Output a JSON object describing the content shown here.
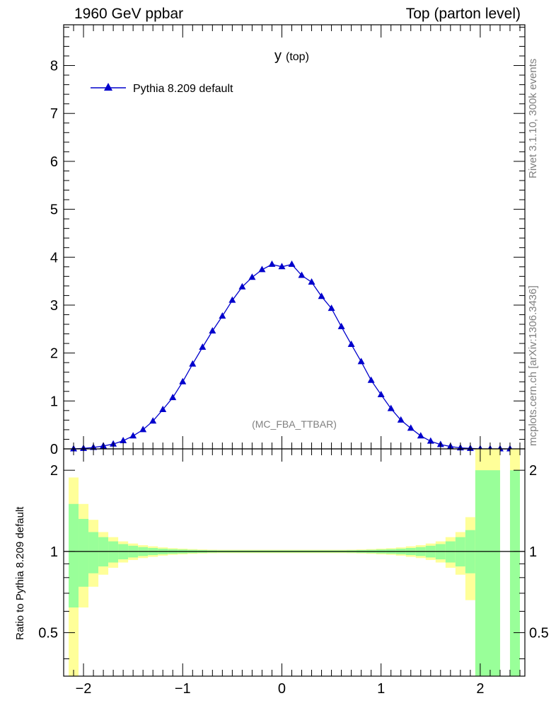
{
  "header": {
    "left": "1960 GeV ppbar",
    "right": "Top (parton level)"
  },
  "side_text": {
    "rivet": "Rivet 3.1.10,  300k events",
    "mcplots": "mcplots.cern.ch [arXiv:1306.3436]"
  },
  "colors": {
    "series": "#0000cc",
    "band_outer": "#ffff99",
    "band_inner": "#99ff99",
    "watermark": "#808080"
  },
  "chart_data": [
    {
      "type": "line",
      "title": "y",
      "title_sub": "(top)",
      "watermark": "(MC_FBA_TTBAR)",
      "xlabel": "",
      "ylabel": "",
      "xlim": [
        -2.2,
        2.45
      ],
      "ylim": [
        0,
        8.85
      ],
      "yticks": [
        "0",
        "1",
        "2",
        "3",
        "4",
        "5",
        "6",
        "7",
        "8"
      ],
      "series": [
        {
          "name": "Pythia 8.209 default",
          "marker": "triangle",
          "x": [
            -2.1,
            -2.0,
            -1.9,
            -1.8,
            -1.7,
            -1.6,
            -1.5,
            -1.4,
            -1.3,
            -1.2,
            -1.1,
            -1.0,
            -0.9,
            -0.8,
            -0.7,
            -0.6,
            -0.5,
            -0.4,
            -0.3,
            -0.2,
            -0.1,
            0.0,
            0.1,
            0.2,
            0.3,
            0.4,
            0.5,
            0.6,
            0.7,
            0.8,
            0.9,
            1.0,
            1.1,
            1.2,
            1.3,
            1.4,
            1.5,
            1.6,
            1.7,
            1.8,
            1.9,
            2.0,
            2.1,
            2.2,
            2.3
          ],
          "values": [
            0.0,
            0.01,
            0.03,
            0.06,
            0.1,
            0.17,
            0.27,
            0.4,
            0.58,
            0.82,
            1.07,
            1.4,
            1.77,
            2.12,
            2.46,
            2.77,
            3.1,
            3.38,
            3.58,
            3.74,
            3.85,
            3.8,
            3.85,
            3.62,
            3.48,
            3.18,
            2.93,
            2.55,
            2.18,
            1.82,
            1.43,
            1.13,
            0.84,
            0.6,
            0.43,
            0.27,
            0.16,
            0.09,
            0.05,
            0.02,
            0.01,
            0.0,
            0.0,
            0.0,
            0.0
          ]
        }
      ]
    },
    {
      "type": "area",
      "ylabel": "Ratio to Pythia 8.209 default",
      "xlim": [
        -2.2,
        2.45
      ],
      "ylim": [
        0.345,
        2.4
      ],
      "ylog": true,
      "xticks": [
        "−2",
        "−1",
        "0",
        "1",
        "2"
      ],
      "xtick_values": [
        -2,
        -1,
        0,
        1,
        2
      ],
      "yticks": [
        "0.5",
        "1",
        "2"
      ],
      "ytick_values": [
        0.5,
        1,
        2
      ],
      "reference_line": 1,
      "bins": [
        {
          "x0": -2.15,
          "x1": -2.05,
          "inner": [
            0.62,
            1.5
          ],
          "outer": [
            0.3,
            1.88
          ]
        },
        {
          "x0": -2.05,
          "x1": -1.95,
          "inner": [
            0.74,
            1.32
          ],
          "outer": [
            0.62,
            1.5
          ]
        },
        {
          "x0": -1.95,
          "x1": -1.85,
          "inner": [
            0.83,
            1.18
          ],
          "outer": [
            0.74,
            1.31
          ]
        },
        {
          "x0": -1.85,
          "x1": -1.75,
          "inner": [
            0.88,
            1.13
          ],
          "outer": [
            0.82,
            1.18
          ]
        },
        {
          "x0": -1.75,
          "x1": -1.65,
          "inner": [
            0.91,
            1.09
          ],
          "outer": [
            0.87,
            1.13
          ]
        },
        {
          "x0": -1.65,
          "x1": -1.55,
          "inner": [
            0.935,
            1.065
          ],
          "outer": [
            0.91,
            1.09
          ]
        },
        {
          "x0": -1.55,
          "x1": -1.45,
          "inner": [
            0.95,
            1.05
          ],
          "outer": [
            0.93,
            1.07
          ]
        },
        {
          "x0": -1.45,
          "x1": -1.35,
          "inner": [
            0.962,
            1.038
          ],
          "outer": [
            0.945,
            1.055
          ]
        },
        {
          "x0": -1.35,
          "x1": -1.25,
          "inner": [
            0.97,
            1.03
          ],
          "outer": [
            0.955,
            1.045
          ]
        },
        {
          "x0": -1.25,
          "x1": -1.15,
          "inner": [
            0.976,
            1.024
          ],
          "outer": [
            0.965,
            1.035
          ]
        },
        {
          "x0": -1.15,
          "x1": -1.05,
          "inner": [
            0.98,
            1.02
          ],
          "outer": [
            0.972,
            1.028
          ]
        },
        {
          "x0": -1.05,
          "x1": -0.95,
          "inner": [
            0.983,
            1.017
          ],
          "outer": [
            0.976,
            1.024
          ]
        },
        {
          "x0": -0.95,
          "x1": -0.85,
          "inner": [
            0.986,
            1.014
          ],
          "outer": [
            0.98,
            1.02
          ]
        },
        {
          "x0": -0.85,
          "x1": -0.75,
          "inner": [
            0.988,
            1.012
          ],
          "outer": [
            0.983,
            1.017
          ]
        },
        {
          "x0": -0.75,
          "x1": -0.65,
          "inner": [
            0.99,
            1.01
          ],
          "outer": [
            0.985,
            1.015
          ]
        },
        {
          "x0": -0.65,
          "x1": 0.65,
          "inner": [
            0.991,
            1.009
          ],
          "outer": [
            0.986,
            1.014
          ]
        },
        {
          "x0": 0.65,
          "x1": 0.75,
          "inner": [
            0.99,
            1.01
          ],
          "outer": [
            0.985,
            1.015
          ]
        },
        {
          "x0": 0.75,
          "x1": 0.85,
          "inner": [
            0.988,
            1.012
          ],
          "outer": [
            0.983,
            1.017
          ]
        },
        {
          "x0": 0.85,
          "x1": 0.95,
          "inner": [
            0.986,
            1.014
          ],
          "outer": [
            0.98,
            1.02
          ]
        },
        {
          "x0": 0.95,
          "x1": 1.05,
          "inner": [
            0.983,
            1.017
          ],
          "outer": [
            0.976,
            1.024
          ]
        },
        {
          "x0": 1.05,
          "x1": 1.15,
          "inner": [
            0.98,
            1.02
          ],
          "outer": [
            0.972,
            1.028
          ]
        },
        {
          "x0": 1.15,
          "x1": 1.25,
          "inner": [
            0.976,
            1.024
          ],
          "outer": [
            0.965,
            1.035
          ]
        },
        {
          "x0": 1.25,
          "x1": 1.35,
          "inner": [
            0.97,
            1.03
          ],
          "outer": [
            0.955,
            1.045
          ]
        },
        {
          "x0": 1.35,
          "x1": 1.45,
          "inner": [
            0.962,
            1.038
          ],
          "outer": [
            0.945,
            1.055
          ]
        },
        {
          "x0": 1.45,
          "x1": 1.55,
          "inner": [
            0.95,
            1.05
          ],
          "outer": [
            0.93,
            1.07
          ]
        },
        {
          "x0": 1.55,
          "x1": 1.65,
          "inner": [
            0.935,
            1.065
          ],
          "outer": [
            0.91,
            1.09
          ]
        },
        {
          "x0": 1.65,
          "x1": 1.75,
          "inner": [
            0.91,
            1.09
          ],
          "outer": [
            0.87,
            1.13
          ]
        },
        {
          "x0": 1.75,
          "x1": 1.85,
          "inner": [
            0.88,
            1.13
          ],
          "outer": [
            0.82,
            1.18
          ]
        },
        {
          "x0": 1.85,
          "x1": 1.95,
          "inner": [
            0.83,
            1.2
          ],
          "outer": [
            0.66,
            1.34
          ]
        },
        {
          "x0": 1.95,
          "x1": 2.2,
          "inner": [
            0.3,
            2.0
          ],
          "outer": [
            0.3,
            2.6
          ]
        },
        {
          "x0": 2.3,
          "x1": 2.4,
          "inner": [
            0.3,
            2.0
          ],
          "outer": [
            0.3,
            2.6
          ]
        }
      ]
    }
  ]
}
